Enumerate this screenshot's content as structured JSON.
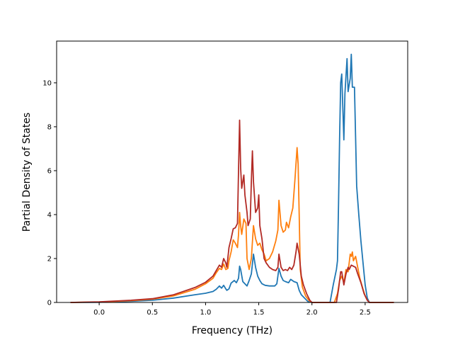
{
  "chart_data": {
    "type": "line",
    "title": "",
    "xlabel": "Frequency (THz)",
    "ylabel": "Partial Density of States",
    "xlim": [
      -0.4,
      2.9
    ],
    "ylim": [
      0,
      11.9
    ],
    "xticks": [
      0.0,
      0.5,
      1.0,
      1.5,
      2.0,
      2.5
    ],
    "xtick_labels": [
      "0.0",
      "0.5",
      "1.0",
      "1.5",
      "2.0",
      "2.5"
    ],
    "yticks": [
      0,
      2,
      4,
      6,
      8,
      10
    ],
    "ytick_labels": [
      "0",
      "2",
      "4",
      "6",
      "8",
      "10"
    ],
    "grid": false,
    "legend": "none",
    "series": [
      {
        "color": "#1f77b4",
        "points": [
          [
            -0.27,
            0
          ],
          [
            0.0,
            0.01
          ],
          [
            0.3,
            0.05
          ],
          [
            0.5,
            0.1
          ],
          [
            0.7,
            0.2
          ],
          [
            0.9,
            0.35
          ],
          [
            1.0,
            0.42
          ],
          [
            1.07,
            0.5
          ],
          [
            1.1,
            0.6
          ],
          [
            1.13,
            0.75
          ],
          [
            1.15,
            0.65
          ],
          [
            1.17,
            0.78
          ],
          [
            1.19,
            0.62
          ],
          [
            1.2,
            0.55
          ],
          [
            1.22,
            0.62
          ],
          [
            1.24,
            0.88
          ],
          [
            1.27,
            1.0
          ],
          [
            1.29,
            0.9
          ],
          [
            1.31,
            1.1
          ],
          [
            1.32,
            1.65
          ],
          [
            1.33,
            1.5
          ],
          [
            1.35,
            0.95
          ],
          [
            1.37,
            0.85
          ],
          [
            1.39,
            0.75
          ],
          [
            1.41,
            1.0
          ],
          [
            1.43,
            1.3
          ],
          [
            1.45,
            2.2
          ],
          [
            1.47,
            1.6
          ],
          [
            1.49,
            1.2
          ],
          [
            1.51,
            1.0
          ],
          [
            1.53,
            0.85
          ],
          [
            1.56,
            0.78
          ],
          [
            1.6,
            0.75
          ],
          [
            1.65,
            0.75
          ],
          [
            1.67,
            0.85
          ],
          [
            1.69,
            1.55
          ],
          [
            1.71,
            1.2
          ],
          [
            1.73,
            1.0
          ],
          [
            1.75,
            0.95
          ],
          [
            1.78,
            0.9
          ],
          [
            1.8,
            1.05
          ],
          [
            1.83,
            0.95
          ],
          [
            1.86,
            0.9
          ],
          [
            1.88,
            0.55
          ],
          [
            1.9,
            0.35
          ],
          [
            1.93,
            0.2
          ],
          [
            1.96,
            0.05
          ],
          [
            2.0,
            0
          ],
          [
            2.17,
            0
          ],
          [
            2.2,
            0.8
          ],
          [
            2.23,
            1.5
          ],
          [
            2.24,
            1.9
          ],
          [
            2.25,
            4.5
          ],
          [
            2.26,
            7.5
          ],
          [
            2.27,
            10.0
          ],
          [
            2.28,
            10.4
          ],
          [
            2.3,
            7.4
          ],
          [
            2.31,
            9.5
          ],
          [
            2.33,
            11.1
          ],
          [
            2.34,
            9.6
          ],
          [
            2.36,
            10.2
          ],
          [
            2.37,
            11.3
          ],
          [
            2.38,
            9.8
          ],
          [
            2.4,
            9.8
          ],
          [
            2.41,
            7.5
          ],
          [
            2.42,
            5.3
          ],
          [
            2.44,
            4.0
          ],
          [
            2.46,
            2.8
          ],
          [
            2.48,
            1.8
          ],
          [
            2.5,
            0.8
          ],
          [
            2.52,
            0.2
          ],
          [
            2.54,
            0
          ],
          [
            2.77,
            0
          ]
        ]
      },
      {
        "color": "#ff7f0e",
        "points": [
          [
            -0.27,
            0
          ],
          [
            0.0,
            0.02
          ],
          [
            0.3,
            0.08
          ],
          [
            0.5,
            0.15
          ],
          [
            0.7,
            0.3
          ],
          [
            0.9,
            0.6
          ],
          [
            1.0,
            0.85
          ],
          [
            1.07,
            1.1
          ],
          [
            1.1,
            1.35
          ],
          [
            1.13,
            1.55
          ],
          [
            1.15,
            1.5
          ],
          [
            1.17,
            1.75
          ],
          [
            1.19,
            1.5
          ],
          [
            1.21,
            1.55
          ],
          [
            1.22,
            1.9
          ],
          [
            1.24,
            2.3
          ],
          [
            1.26,
            2.85
          ],
          [
            1.28,
            2.7
          ],
          [
            1.3,
            2.5
          ],
          [
            1.31,
            3.1
          ],
          [
            1.32,
            4.1
          ],
          [
            1.33,
            3.5
          ],
          [
            1.34,
            3.1
          ],
          [
            1.36,
            3.8
          ],
          [
            1.38,
            3.6
          ],
          [
            1.39,
            2.0
          ],
          [
            1.41,
            1.5
          ],
          [
            1.43,
            2.0
          ],
          [
            1.45,
            3.5
          ],
          [
            1.47,
            2.9
          ],
          [
            1.49,
            2.6
          ],
          [
            1.51,
            2.7
          ],
          [
            1.53,
            2.4
          ],
          [
            1.55,
            2.2
          ],
          [
            1.57,
            1.9
          ],
          [
            1.6,
            2.0
          ],
          [
            1.63,
            2.3
          ],
          [
            1.66,
            2.8
          ],
          [
            1.68,
            3.3
          ],
          [
            1.69,
            4.65
          ],
          [
            1.71,
            3.5
          ],
          [
            1.73,
            3.2
          ],
          [
            1.75,
            3.3
          ],
          [
            1.76,
            3.65
          ],
          [
            1.78,
            3.4
          ],
          [
            1.8,
            3.9
          ],
          [
            1.82,
            4.3
          ],
          [
            1.84,
            5.6
          ],
          [
            1.86,
            7.05
          ],
          [
            1.87,
            6.3
          ],
          [
            1.88,
            4.0
          ],
          [
            1.89,
            1.5
          ],
          [
            1.91,
            0.7
          ],
          [
            1.94,
            0.3
          ],
          [
            1.97,
            0.1
          ],
          [
            2.0,
            0
          ],
          [
            2.21,
            0
          ],
          [
            2.24,
            0.4
          ],
          [
            2.26,
            1.0
          ],
          [
            2.28,
            1.2
          ],
          [
            2.3,
            0.9
          ],
          [
            2.32,
            1.5
          ],
          [
            2.34,
            1.4
          ],
          [
            2.36,
            2.2
          ],
          [
            2.37,
            2.1
          ],
          [
            2.38,
            2.3
          ],
          [
            2.39,
            1.9
          ],
          [
            2.41,
            2.1
          ],
          [
            2.43,
            1.6
          ],
          [
            2.45,
            1.1
          ],
          [
            2.48,
            0.6
          ],
          [
            2.5,
            0.3
          ],
          [
            2.52,
            0.1
          ],
          [
            2.54,
            0
          ],
          [
            2.77,
            0
          ]
        ]
      },
      {
        "color": "#b22a25",
        "points": [
          [
            -0.27,
            0
          ],
          [
            0.0,
            0.03
          ],
          [
            0.3,
            0.1
          ],
          [
            0.5,
            0.17
          ],
          [
            0.7,
            0.35
          ],
          [
            0.9,
            0.68
          ],
          [
            1.0,
            0.92
          ],
          [
            1.07,
            1.2
          ],
          [
            1.1,
            1.45
          ],
          [
            1.13,
            1.7
          ],
          [
            1.15,
            1.6
          ],
          [
            1.17,
            2.0
          ],
          [
            1.19,
            1.8
          ],
          [
            1.2,
            1.6
          ],
          [
            1.22,
            2.5
          ],
          [
            1.24,
            2.9
          ],
          [
            1.26,
            3.35
          ],
          [
            1.28,
            3.4
          ],
          [
            1.3,
            3.6
          ],
          [
            1.31,
            6.0
          ],
          [
            1.32,
            8.3
          ],
          [
            1.33,
            6.1
          ],
          [
            1.34,
            5.2
          ],
          [
            1.36,
            5.8
          ],
          [
            1.37,
            4.9
          ],
          [
            1.39,
            4.1
          ],
          [
            1.4,
            3.5
          ],
          [
            1.42,
            3.8
          ],
          [
            1.43,
            5.5
          ],
          [
            1.44,
            6.9
          ],
          [
            1.45,
            5.5
          ],
          [
            1.47,
            4.1
          ],
          [
            1.49,
            4.3
          ],
          [
            1.5,
            4.9
          ],
          [
            1.51,
            3.5
          ],
          [
            1.53,
            2.9
          ],
          [
            1.55,
            2.0
          ],
          [
            1.57,
            1.8
          ],
          [
            1.6,
            1.6
          ],
          [
            1.63,
            1.5
          ],
          [
            1.66,
            1.45
          ],
          [
            1.68,
            1.6
          ],
          [
            1.69,
            2.2
          ],
          [
            1.71,
            1.6
          ],
          [
            1.73,
            1.45
          ],
          [
            1.75,
            1.5
          ],
          [
            1.77,
            1.45
          ],
          [
            1.79,
            1.6
          ],
          [
            1.81,
            1.5
          ],
          [
            1.83,
            1.7
          ],
          [
            1.85,
            2.3
          ],
          [
            1.86,
            2.7
          ],
          [
            1.88,
            2.2
          ],
          [
            1.9,
            1.2
          ],
          [
            1.92,
            0.8
          ],
          [
            1.95,
            0.4
          ],
          [
            1.98,
            0.1
          ],
          [
            2.0,
            0
          ],
          [
            2.23,
            0
          ],
          [
            2.25,
            0.6
          ],
          [
            2.27,
            1.4
          ],
          [
            2.28,
            1.4
          ],
          [
            2.3,
            0.8
          ],
          [
            2.32,
            1.3
          ],
          [
            2.34,
            1.6
          ],
          [
            2.35,
            1.5
          ],
          [
            2.37,
            1.7
          ],
          [
            2.39,
            1.65
          ],
          [
            2.41,
            1.6
          ],
          [
            2.43,
            1.3
          ],
          [
            2.46,
            0.9
          ],
          [
            2.49,
            0.4
          ],
          [
            2.52,
            0.1
          ],
          [
            2.54,
            0
          ],
          [
            2.77,
            0
          ]
        ]
      }
    ]
  }
}
